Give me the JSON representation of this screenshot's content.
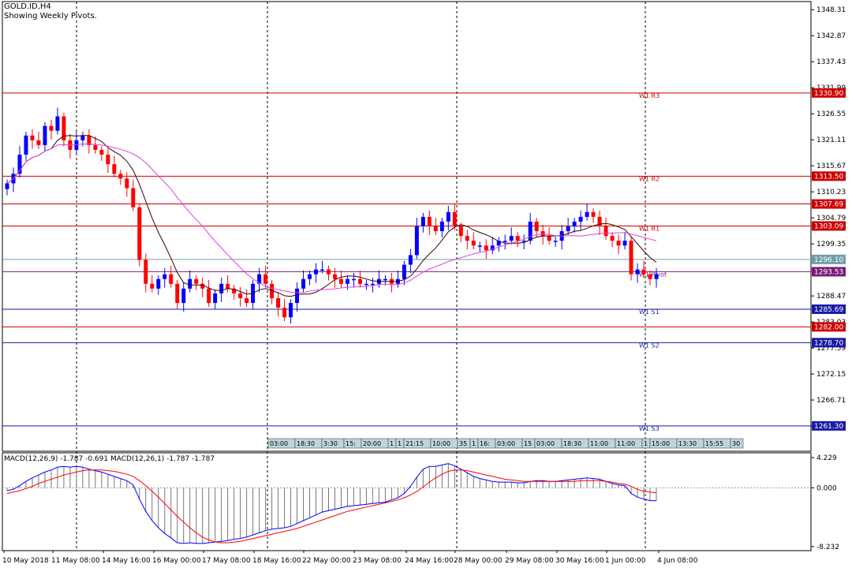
{
  "header": {
    "symbol": "GOLD.ID,H4",
    "info": "Showing Weekly Pivots."
  },
  "macd_header": "MACD(12,26,9) -1.787 -0.691 MACD(12,26,1) -1.787 -1.787",
  "chart_data": [
    {
      "type": "candlestick",
      "symbol": "GOLD.ID",
      "timeframe": "H4",
      "ylim": [
        1256.0,
        1350.0
      ],
      "y_ticks": [
        "1348.31",
        "1342.87",
        "1337.43",
        "1331.99",
        "1326.55",
        "1321.11",
        "1315.67",
        "1310.23",
        "1304.79",
        "1299.35",
        "1293.91",
        "1288.47",
        "1283.03",
        "1277.59",
        "1272.15",
        "1266.71",
        "1261.27"
      ],
      "x_labels": [
        "10 May 2018",
        "11 May 08:00",
        "14 May 16:00",
        "16 May 00:00",
        "17 May 08:00",
        "18 May 16:00",
        "22 May 00:00",
        "23 May 08:00",
        "24 May 16:00",
        "28 May 00:00",
        "29 May 08:00",
        "30 May 16:00",
        "1 Jun 00:00",
        "4 Jun 08:00"
      ],
      "grid": "vertical dashed separators",
      "pivot_lines": [
        {
          "name": "W1 R3",
          "value": 1330.9,
          "label": "1330.90",
          "color": "#cc0000"
        },
        {
          "name": "W1 R2",
          "value": 1313.5,
          "label": "1313.50",
          "color": "#cc0000"
        },
        {
          "name": "",
          "value": 1307.69,
          "label": "1307.69",
          "color": "#cc0000"
        },
        {
          "name": "W1 R1",
          "value": 1303.09,
          "label": "1303.09",
          "color": "#cc0000"
        },
        {
          "name": "",
          "value": 1296.1,
          "label": "1296.10",
          "color": "#6f9fa8"
        },
        {
          "name": "W1 Pivot",
          "value": 1293.53,
          "label": "1293.53",
          "color": "#7a1b7a"
        },
        {
          "name": "W1 S1",
          "value": 1285.69,
          "label": "1285.69",
          "color": "#1a1aa6"
        },
        {
          "name": "",
          "value": 1282.0,
          "label": "1282.00",
          "color": "#cc0000"
        },
        {
          "name": "W1 S2",
          "value": 1278.7,
          "label": "1278.70",
          "color": "#1a1aa6"
        },
        {
          "name": "W1 S3",
          "value": 1261.3,
          "label": "1261.30",
          "color": "#1a1aa6"
        }
      ],
      "time_bar_labels": [
        "03:00",
        "18:30",
        "3:30",
        "15:",
        "20:00",
        "1",
        "1",
        "21:15",
        "10:00",
        "35",
        "1",
        "16:",
        "03:00",
        "15",
        "03:00",
        "18:30",
        "11:00",
        "11:00",
        "1",
        "15:00",
        "13:30",
        "15:55",
        "30"
      ],
      "close": [
        1312,
        1314,
        1318,
        1322,
        1321,
        1320,
        1324,
        1323,
        1326,
        1321,
        1319,
        1321,
        1322,
        1320,
        1319,
        1318,
        1316,
        1314,
        1313,
        1311,
        1307,
        1296,
        1291,
        1290,
        1292,
        1293,
        1291,
        1287,
        1290,
        1292,
        1291,
        1290,
        1287,
        1289,
        1291,
        1290,
        1289,
        1288,
        1287,
        1291,
        1293,
        1291,
        1288,
        1286,
        1284,
        1287,
        1290,
        1292,
        1293,
        1294,
        1294,
        1293,
        1292,
        1291,
        1292,
        1292,
        1291,
        1291,
        1291,
        1292,
        1292,
        1291,
        1292,
        1295,
        1297,
        1303,
        1305,
        1303,
        1302,
        1304,
        1306,
        1303,
        1301,
        1300,
        1299,
        1299,
        1298,
        1299,
        1300,
        1300,
        1301,
        1300,
        1300,
        1304,
        1302,
        1301,
        1300,
        1300,
        1302,
        1303,
        1304,
        1305,
        1306,
        1305,
        1303,
        1301,
        1300,
        1299,
        1300,
        1293,
        1294,
        1293,
        1292,
        1293
      ]
    },
    {
      "type": "macd",
      "title": "MACD(12,26,9) -1.787 -0.691 MACD(12,26,1) -1.787 -1.787",
      "ylim": [
        -8.8,
        4.9
      ],
      "y_ticks": [
        "4.229",
        "0.000",
        "-8.232"
      ],
      "series": [
        {
          "name": "",
          "color": "#0000ff",
          "values": [
            -0.4,
            -0.2,
            0.3,
            0.9,
            1.4,
            1.8,
            2.2,
            2.5,
            2.9,
            3.0,
            2.9,
            3.0,
            2.9,
            2.6,
            2.4,
            2.2,
            1.9,
            1.6,
            1.3,
            1.0,
            0.4,
            -1.6,
            -3.3,
            -4.6,
            -5.6,
            -6.4,
            -7.0,
            -7.7,
            -7.8,
            -7.7,
            -7.8,
            -7.8,
            -7.7,
            -7.6,
            -7.5,
            -7.4,
            -7.2,
            -7.1,
            -6.9,
            -6.6,
            -6.3,
            -6.0,
            -5.8,
            -5.7,
            -5.6,
            -5.4,
            -5.0,
            -4.6,
            -4.2,
            -3.8,
            -3.4,
            -3.2,
            -3.0,
            -2.8,
            -2.6,
            -2.5,
            -2.4,
            -2.3,
            -2.2,
            -2.1,
            -2.0,
            -1.7,
            -1.4,
            -0.8,
            0.2,
            1.5,
            2.6,
            3.0,
            3.0,
            3.2,
            3.4,
            3.1,
            2.6,
            2.1,
            1.6,
            1.3,
            1.1,
            0.9,
            0.8,
            0.8,
            0.8,
            0.7,
            0.7,
            0.9,
            1.0,
            1.0,
            0.9,
            0.9,
            1.0,
            1.1,
            1.2,
            1.3,
            1.4,
            1.3,
            1.2,
            0.9,
            0.6,
            0.4,
            0.3,
            -0.8,
            -1.3,
            -1.6,
            -1.8,
            -1.8
          ]
        },
        {
          "name": "",
          "color": "#ff0000",
          "values": [
            -0.8,
            -0.6,
            -0.4,
            -0.1,
            0.2,
            0.6,
            0.9,
            1.2,
            1.5,
            1.8,
            2.0,
            2.2,
            2.4,
            2.5,
            2.5,
            2.5,
            2.4,
            2.3,
            2.1,
            1.9,
            1.6,
            1.0,
            0.3,
            -0.5,
            -1.3,
            -2.2,
            -3.1,
            -4.0,
            -4.8,
            -5.6,
            -6.3,
            -6.9,
            -7.3,
            -7.6,
            -7.7,
            -7.7,
            -7.6,
            -7.5,
            -7.3,
            -7.1,
            -6.9,
            -6.7,
            -6.5,
            -6.3,
            -6.1,
            -5.9,
            -5.7,
            -5.4,
            -5.1,
            -4.8,
            -4.5,
            -4.2,
            -3.9,
            -3.6,
            -3.3,
            -3.1,
            -2.9,
            -2.7,
            -2.5,
            -2.3,
            -2.1,
            -1.9,
            -1.7,
            -1.4,
            -1.0,
            -0.5,
            0.1,
            0.8,
            1.4,
            1.9,
            2.3,
            2.5,
            2.5,
            2.4,
            2.2,
            2.0,
            1.8,
            1.6,
            1.4,
            1.2,
            1.1,
            1.0,
            0.9,
            0.9,
            0.9,
            0.9,
            0.9,
            0.9,
            0.9,
            0.9,
            0.9,
            1.0,
            1.0,
            1.0,
            1.0,
            0.9,
            0.8,
            0.6,
            0.5,
            0.2,
            -0.2,
            -0.5,
            -0.6,
            -0.7
          ]
        }
      ]
    }
  ]
}
